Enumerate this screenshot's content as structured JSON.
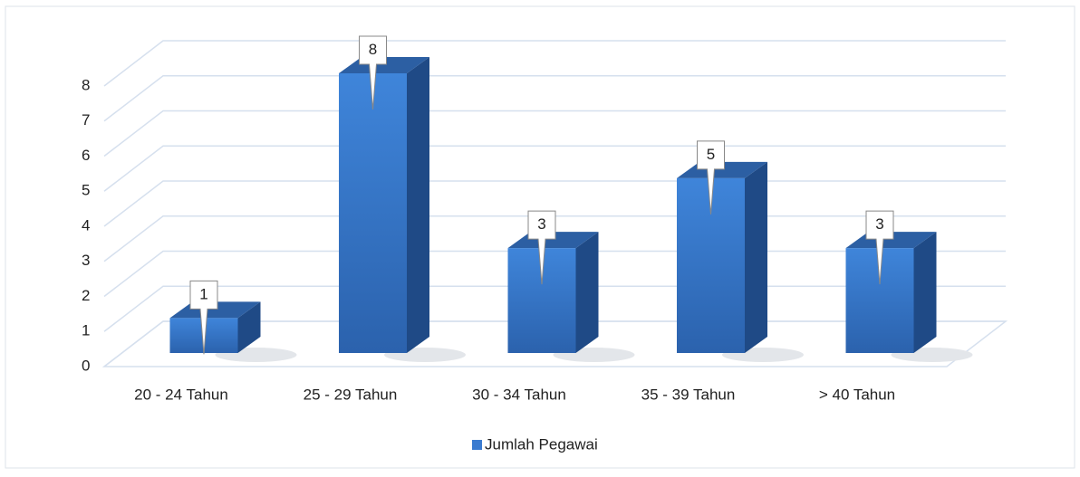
{
  "chart_data": {
    "type": "bar",
    "categories": [
      "20 - 24 Tahun",
      "25 - 29 Tahun",
      "30 - 34 Tahun",
      "35 - 39 Tahun",
      "> 40 Tahun"
    ],
    "series": [
      {
        "name": "Jumlah Pegawai",
        "color": "#3a7bd0",
        "values": [
          1,
          8,
          3,
          5,
          3
        ]
      }
    ],
    "ylim": [
      0,
      8
    ],
    "yticks": [
      0,
      1,
      2,
      3,
      4,
      5,
      6,
      7,
      8
    ],
    "grid": true,
    "legend": "bottom"
  }
}
